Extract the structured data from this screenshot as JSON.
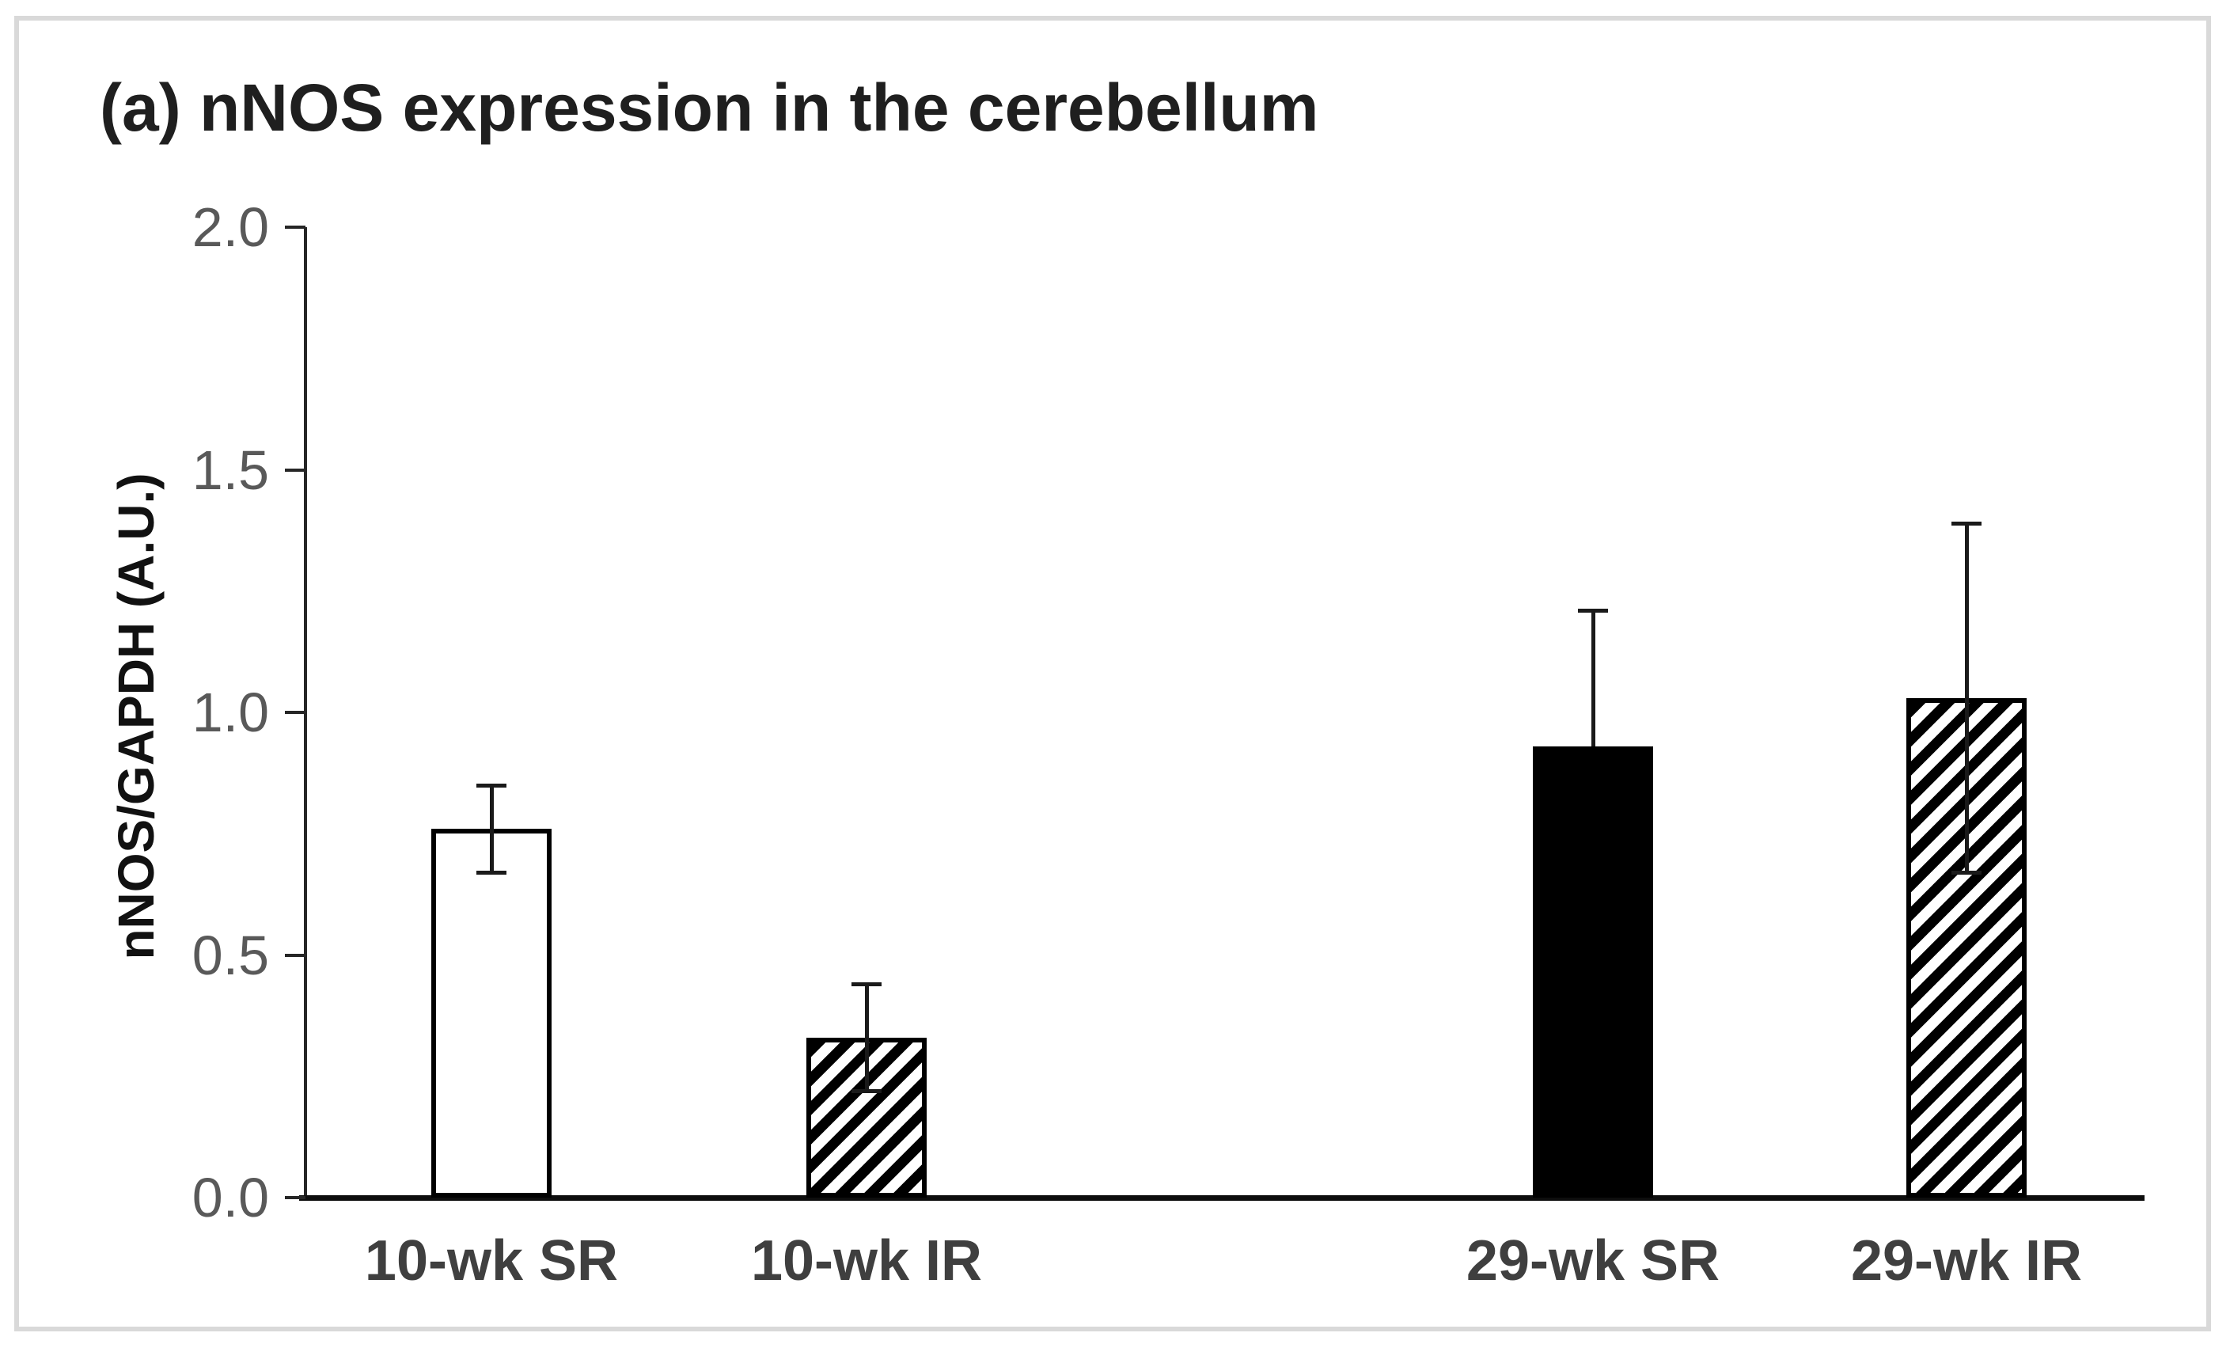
{
  "chart_data": {
    "type": "bar",
    "title": "(a) nNOS expression in the cerebellum",
    "xlabel": "",
    "ylabel": "nNOS/GAPDH (A.U.)",
    "categories": [
      "10-wk SR",
      "10-wk IR",
      "29-wk SR",
      "29-wk IR"
    ],
    "values": [
      0.76,
      0.33,
      0.93,
      1.03
    ],
    "errors_up": [
      0.09,
      0.11,
      0.28,
      0.36
    ],
    "errors_down": [
      0.09,
      0.11,
      0,
      0.36
    ],
    "bar_styles": [
      "open",
      "hatched",
      "solid",
      "hatched"
    ],
    "ylim": [
      0.0,
      2.0
    ],
    "yticks": [
      "0.0",
      "0.5",
      "1.0",
      "1.5",
      "2.0"
    ],
    "grid": false,
    "legend_position": "none",
    "colors": {
      "bar_outline": "#000000",
      "solid_fill": "#000000",
      "title_text": "#1f1f1f",
      "tick_label_text": "#595959",
      "category_label_text": "#3f3f3f",
      "axis_line": "#262626",
      "frame_border": "#d9d9d9"
    }
  }
}
